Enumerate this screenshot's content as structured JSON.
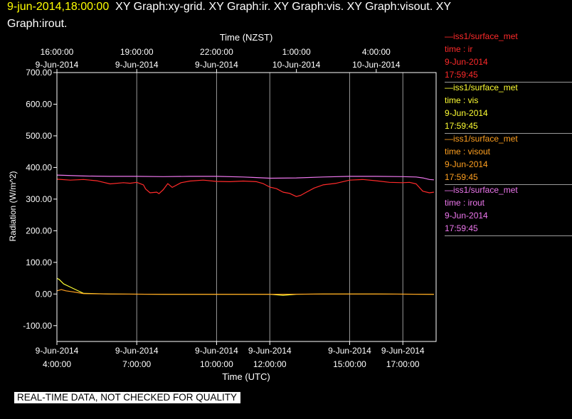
{
  "header": {
    "timestamp": "9-jun-2014,18:00:00",
    "titles_line1": "XY Graph:xy-grid.  XY Graph:ir.  XY Graph:vis.  XY Graph:visout.  XY",
    "titles_line2": "Graph:irout."
  },
  "legend": [
    {
      "name": "—iss1/surface_met",
      "field": "time : ir",
      "date": "9-Jun-2014",
      "time": "17:59:45",
      "color": "#ff2a2a"
    },
    {
      "name": "—iss1/surface_met",
      "field": "time : vis",
      "date": "9-Jun-2014",
      "time": "17:59:45",
      "color": "#ffff33"
    },
    {
      "name": "—iss1/surface_met",
      "field": "time : visout",
      "date": "9-Jun-2014",
      "time": "17:59:45",
      "color": "#ffa020"
    },
    {
      "name": "—iss1/surface_met",
      "field": "time : irout",
      "date": "9-Jun-2014",
      "time": "17:59:45",
      "color": "#ee77ee"
    }
  ],
  "disclaimer": "REAL-TIME DATA, NOT CHECKED FOR QUALITY",
  "chart_data": {
    "type": "line",
    "ylabel": "Radiation  (W/m^2)",
    "xlabel_bottom": "Time (UTC)",
    "xlabel_top": "Time (NZST)",
    "ylim": [
      -150,
      700
    ],
    "xlim_utc": [
      "2014-06-09 04:00",
      "2014-06-09 18:15"
    ],
    "grid": "vertical only",
    "yticks": [
      "700.00",
      "600.00",
      "500.00",
      "400.00",
      "300.00",
      "200.00",
      "100.00",
      "0.00",
      "-100.00"
    ],
    "bottom_ticks": [
      {
        "date": "9-Jun-2014",
        "time": "4:00:00"
      },
      {
        "date": "9-Jun-2014",
        "time": "7:00:00"
      },
      {
        "date": "9-Jun-2014",
        "time": "10:00:00"
      },
      {
        "date": "9-Jun-2014",
        "time": "12:00:00"
      },
      {
        "date": "9-Jun-2014",
        "time": "15:00:00"
      },
      {
        "date": "9-Jun-2014",
        "time": "17:00:00"
      }
    ],
    "top_ticks": [
      {
        "time": "16:00:00",
        "date": "9-Jun-2014"
      },
      {
        "time": "19:00:00",
        "date": "9-Jun-2014"
      },
      {
        "time": "22:00:00",
        "date": "9-Jun-2014"
      },
      {
        "time": "1:00:00",
        "date": "10-Jun-2014"
      },
      {
        "time": "4:00:00",
        "date": "10-Jun-2014"
      }
    ],
    "series": [
      {
        "key": "ir",
        "color": "#ff2a2a",
        "x": [
          "04:00",
          "04:30",
          "05:00",
          "05:30",
          "06:00",
          "06:30",
          "06:45",
          "07:00",
          "07:15",
          "07:20",
          "07:30",
          "07:45",
          "07:50",
          "08:00",
          "08:10",
          "08:20",
          "08:40",
          "09:00",
          "09:30",
          "10:00",
          "10:30",
          "11:00",
          "11:30",
          "11:45",
          "12:00",
          "12:15",
          "12:30",
          "12:45",
          "13:00",
          "13:10",
          "13:20",
          "13:40",
          "14:00",
          "14:30",
          "15:00",
          "15:30",
          "16:00",
          "16:30",
          "17:00",
          "17:15",
          "17:30",
          "17:45",
          "18:00",
          "18:10"
        ],
        "y": [
          363,
          360,
          362,
          358,
          348,
          352,
          350,
          353,
          345,
          332,
          320,
          322,
          317,
          330,
          349,
          337,
          352,
          357,
          360,
          356,
          355,
          357,
          355,
          349,
          338,
          333,
          322,
          318,
          308,
          312,
          320,
          335,
          345,
          350,
          360,
          362,
          358,
          353,
          352,
          353,
          348,
          325,
          320,
          322
        ]
      },
      {
        "key": "vis",
        "color": "#ffff33",
        "x": [
          "04:00",
          "04:05",
          "04:15",
          "04:30",
          "04:45",
          "05:00",
          "05:30",
          "06:00",
          "08:00",
          "10:00",
          "12:00",
          "12:30",
          "13:00",
          "14:00",
          "16:00",
          "18:10"
        ],
        "y": [
          50,
          46,
          32,
          22,
          12,
          2,
          1,
          0,
          -1,
          -1,
          -1,
          -4,
          -1,
          0,
          0,
          -1
        ]
      },
      {
        "key": "visout",
        "color": "#ffa020",
        "x": [
          "04:00",
          "04:10",
          "04:20",
          "04:30",
          "04:45",
          "05:00",
          "06:00",
          "08:00",
          "10:00",
          "12:00",
          "14:00",
          "16:00",
          "18:10"
        ],
        "y": [
          10,
          14,
          10,
          8,
          5,
          1,
          0,
          -1,
          -1,
          -1,
          0,
          0,
          -1
        ]
      },
      {
        "key": "irout",
        "color": "#ee77ee",
        "x": [
          "04:00",
          "05:00",
          "06:00",
          "07:00",
          "08:00",
          "09:00",
          "10:00",
          "11:00",
          "11:30",
          "12:00",
          "13:00",
          "14:00",
          "15:00",
          "16:00",
          "17:00",
          "17:30",
          "17:45",
          "18:00",
          "18:10"
        ],
        "y": [
          376,
          373,
          372,
          372,
          371,
          372,
          372,
          370,
          368,
          366,
          367,
          370,
          372,
          372,
          371,
          370,
          367,
          362,
          361
        ]
      }
    ]
  }
}
